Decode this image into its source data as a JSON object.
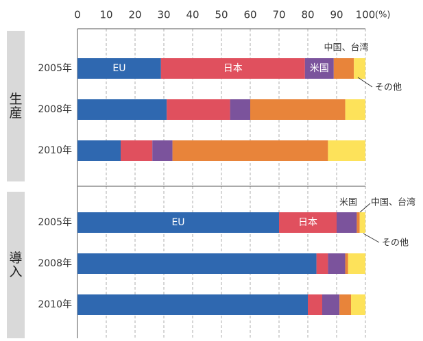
{
  "chart_data": [
    {
      "type": "bar",
      "orientation": "horizontal",
      "stacked": true,
      "panel": "生産",
      "xlim": [
        0,
        100
      ],
      "xticks": [
        0,
        10,
        20,
        30,
        40,
        50,
        60,
        70,
        80,
        90,
        100
      ],
      "xlabel": "(%)",
      "grid": true,
      "categories": [
        "2005年",
        "2008年",
        "2010年"
      ],
      "series": [
        {
          "name": "EU",
          "color": "#2f68b0",
          "values": [
            29,
            31,
            15
          ]
        },
        {
          "name": "日本",
          "color": "#e0505e",
          "values": [
            50,
            22,
            11
          ]
        },
        {
          "name": "米国",
          "color": "#7b539c",
          "values": [
            10,
            7,
            7
          ]
        },
        {
          "name": "中国、台湾",
          "color": "#e8843a",
          "values": [
            7,
            33,
            54
          ]
        },
        {
          "name": "その他",
          "color": "#fde25a",
          "values": [
            4,
            7,
            13
          ]
        }
      ]
    },
    {
      "type": "bar",
      "orientation": "horizontal",
      "stacked": true,
      "panel": "導入",
      "xlim": [
        0,
        100
      ],
      "xticks": [
        0,
        10,
        20,
        30,
        40,
        50,
        60,
        70,
        80,
        90,
        100
      ],
      "grid": true,
      "categories": [
        "2005年",
        "2008年",
        "2010年"
      ],
      "series": [
        {
          "name": "EU",
          "color": "#2f68b0",
          "values": [
            70,
            83,
            80
          ]
        },
        {
          "name": "日本",
          "color": "#e0505e",
          "values": [
            20,
            4,
            5
          ]
        },
        {
          "name": "米国",
          "color": "#7b539c",
          "values": [
            7,
            6,
            6
          ]
        },
        {
          "name": "中国、台湾",
          "color": "#e8843a",
          "values": [
            1,
            1,
            4
          ]
        },
        {
          "name": "その他",
          "color": "#fde25a",
          "values": [
            2,
            6,
            5
          ]
        }
      ]
    }
  ]
}
